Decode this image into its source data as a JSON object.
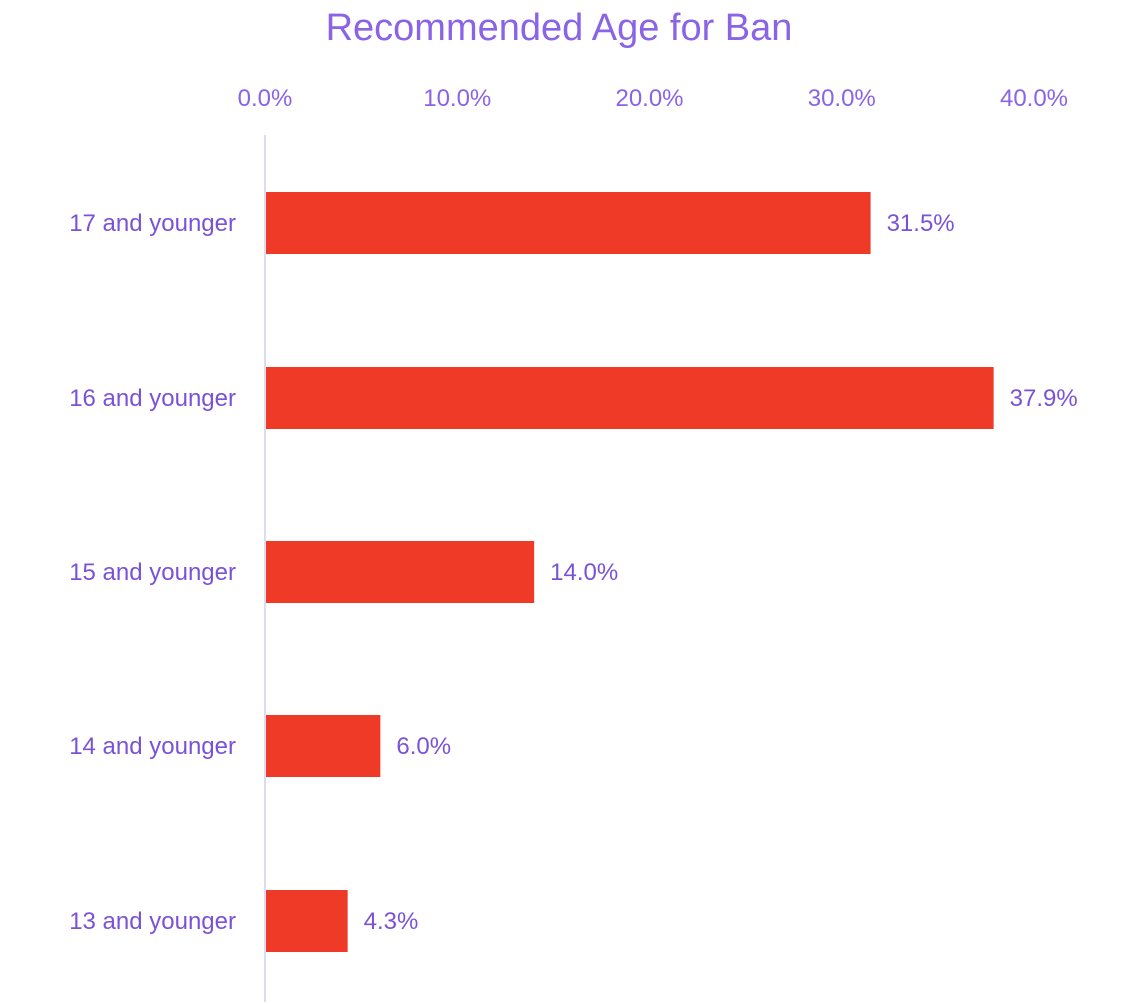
{
  "chart_data": {
    "type": "bar",
    "orientation": "horizontal",
    "title": "Recommended Age for Ban",
    "categories": [
      "17 and younger",
      "16 and younger",
      "15 and younger",
      "14 and younger",
      "13 and younger"
    ],
    "values": [
      31.5,
      37.9,
      14.0,
      6.0,
      4.3
    ],
    "value_labels": [
      "31.5%",
      "37.9%",
      "14.0%",
      "6.0%",
      "4.3%"
    ],
    "xlabel": "",
    "ylabel": "",
    "xlim": [
      0,
      40
    ],
    "x_ticks": [
      0,
      10,
      20,
      30,
      40
    ],
    "x_tick_labels": [
      "0.0%",
      "10.0%",
      "20.0%",
      "30.0%",
      "40.0%"
    ],
    "x_axis_position": "top",
    "grid": false,
    "legend": "none",
    "colors": {
      "bar": "#ee3a26",
      "text": "#8a63e6",
      "axis_line": "#dcdcf0"
    }
  }
}
